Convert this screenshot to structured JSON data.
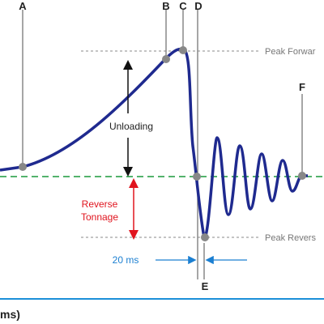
{
  "markers": [
    "A",
    "B",
    "C",
    "D",
    "E",
    "F"
  ],
  "reference_lines": {
    "peak_forward": "Peak Forwar",
    "peak_reverse": "Peak Revers"
  },
  "annotations": {
    "unloading": "Unloading",
    "reverse_tonnage": [
      "Reverse",
      "Tonnage"
    ],
    "interval": "20 ms"
  },
  "footer": "ms)"
}
